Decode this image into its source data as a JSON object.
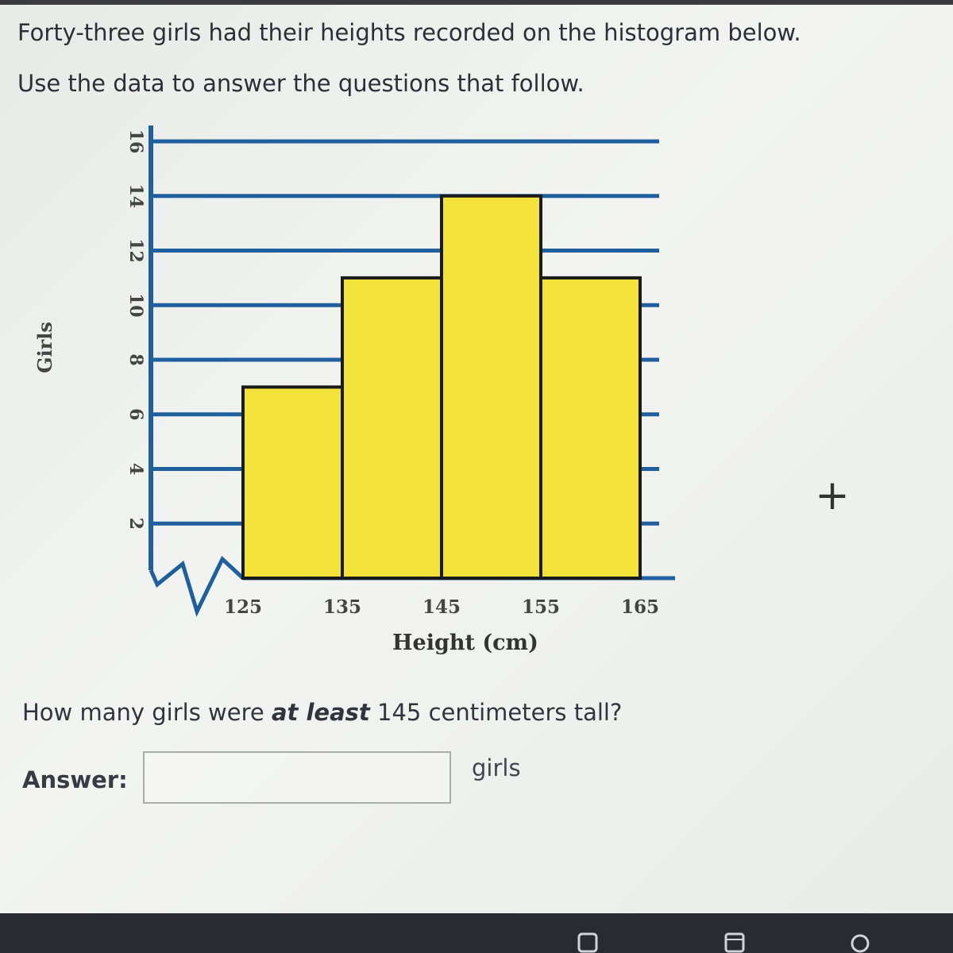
{
  "prompt": {
    "line1": "Forty-three girls had their heights recorded on the histogram below.",
    "line2": "Use the data to answer the questions that follow."
  },
  "chart_data": {
    "type": "bar",
    "title": "",
    "xlabel": "Height (cm)",
    "ylabel": "Girls",
    "bin_edges": [
      125,
      135,
      145,
      155,
      165
    ],
    "x_tick_labels": [
      "125",
      "135",
      "145",
      "155",
      "165"
    ],
    "values": [
      7,
      11,
      14,
      11
    ],
    "ylim": [
      0,
      16
    ],
    "y_ticks": [
      "2",
      "4",
      "6",
      "8",
      "10",
      "12",
      "14",
      "16"
    ],
    "bar_color": "#f2e23a",
    "bar_edge_color": "#1a1a1a",
    "grid_color": "#1f5f9e",
    "grid": true,
    "axis_break": true
  },
  "question": {
    "before": "How many girls were ",
    "emphasis": "at least",
    "after": " 145 centimeters tall?"
  },
  "answer": {
    "label": "Answer:",
    "value": "",
    "unit": "girls"
  },
  "controls": {
    "plus_symbol": "+"
  }
}
